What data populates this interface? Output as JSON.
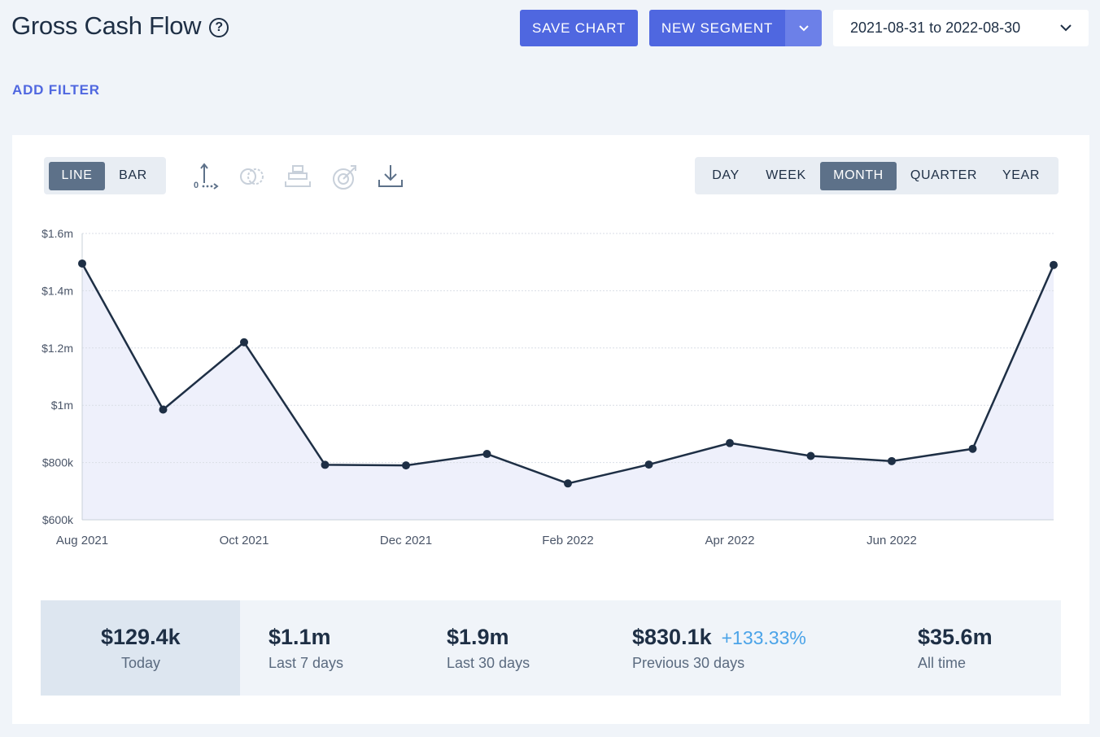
{
  "header": {
    "title": "Gross Cash Flow",
    "help_icon": "?",
    "save_label": "SAVE CHART",
    "segment_label": "NEW SEGMENT",
    "date_range": "2021-08-31 to 2022-08-30"
  },
  "add_filter_label": "ADD FILTER",
  "chart_type_toggle": {
    "options": [
      "LINE",
      "BAR"
    ],
    "selected": "LINE"
  },
  "tools": [
    "axis-icon",
    "compare-icon",
    "stack-icon",
    "goal-icon",
    "download-icon"
  ],
  "period_toggle": {
    "options": [
      "DAY",
      "WEEK",
      "MONTH",
      "QUARTER",
      "YEAR"
    ],
    "selected": "MONTH"
  },
  "chart_data": {
    "type": "line",
    "x": [
      "2021-08",
      "2021-09",
      "2021-10",
      "2021-11",
      "2021-12",
      "2022-01",
      "2022-02",
      "2022-03",
      "2022-04",
      "2022-05",
      "2022-06",
      "2022-07",
      "2022-08"
    ],
    "x_tick_labels": [
      {
        "at": "2021-08",
        "label": "Aug 2021"
      },
      {
        "at": "2021-10",
        "label": "Oct 2021"
      },
      {
        "at": "2021-12",
        "label": "Dec 2021"
      },
      {
        "at": "2022-02",
        "label": "Feb 2022"
      },
      {
        "at": "2022-04",
        "label": "Apr 2022"
      },
      {
        "at": "2022-06",
        "label": "Jun 2022"
      }
    ],
    "series": [
      {
        "values": [
          1495000,
          985000,
          1220000,
          792000,
          790000,
          830000,
          727000,
          793000,
          868000,
          823000,
          805000,
          848000,
          1490000
        ]
      }
    ],
    "ylim": [
      600000,
      1600000
    ],
    "y_ticks": [
      {
        "value": 600000,
        "label": "$600k"
      },
      {
        "value": 800000,
        "label": "$800k"
      },
      {
        "value": 1000000,
        "label": "$1m"
      },
      {
        "value": 1200000,
        "label": "$1.2m"
      },
      {
        "value": 1400000,
        "label": "$1.4m"
      },
      {
        "value": 1600000,
        "label": "$1.6m"
      }
    ],
    "grid": true,
    "colors": {
      "line": "#1e2f45",
      "area": "#eef0fb",
      "grid": "#d9dee6"
    }
  },
  "stats": [
    {
      "value": "$129.4k",
      "label": "Today"
    },
    {
      "value": "$1.1m",
      "label": "Last 7 days"
    },
    {
      "value": "$1.9m",
      "label": "Last 30 days"
    },
    {
      "value": "$830.1k",
      "change": "+133.33%",
      "label": "Previous 30 days"
    },
    {
      "value": "$35.6m",
      "label": "All time"
    }
  ],
  "colors": {
    "accent": "#4f67e0",
    "accent_light": "#6c80e8",
    "active_toggle": "#5d7189",
    "positive": "#4aa3e8"
  }
}
